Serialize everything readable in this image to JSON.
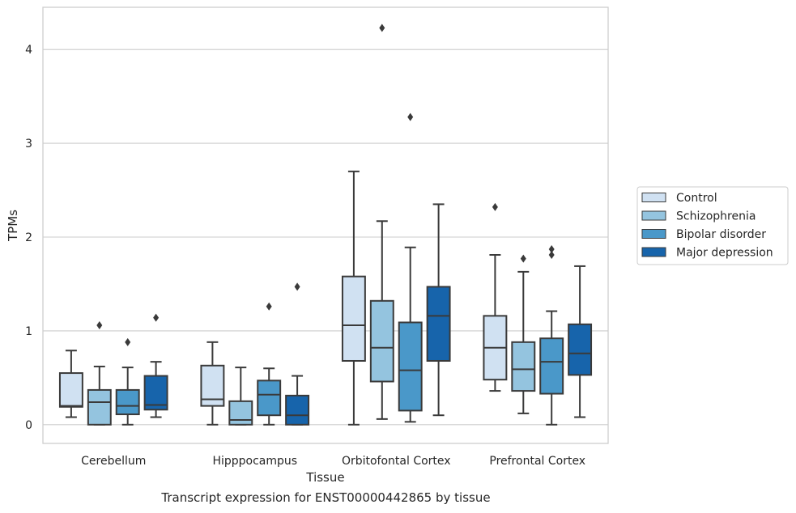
{
  "caption": "Transcript expression for ENST00000442865 by tissue",
  "chart_data": {
    "type": "box",
    "xlabel": "Tissue",
    "ylabel": "TPMs",
    "ylim": [
      -0.2,
      4.45
    ],
    "yticks": [
      0,
      1,
      2,
      3,
      4
    ],
    "grid": "horizontal",
    "legend_position": "right",
    "categories": [
      "Cerebellum",
      "Hipppocampus",
      "Orbitofontal Cortex",
      "Prefrontal Cortex"
    ],
    "series": [
      {
        "name": "Control",
        "color": "#d0e1f2",
        "boxes": [
          {
            "q1": 0.19,
            "median": 0.2,
            "q3": 0.55,
            "whisker_low": 0.08,
            "whisker_high": 0.79,
            "outliers": []
          },
          {
            "q1": 0.2,
            "median": 0.27,
            "q3": 0.63,
            "whisker_low": 0.0,
            "whisker_high": 0.88,
            "outliers": []
          },
          {
            "q1": 0.68,
            "median": 1.06,
            "q3": 1.58,
            "whisker_low": 0.0,
            "whisker_high": 2.7,
            "outliers": []
          },
          {
            "q1": 0.48,
            "median": 0.82,
            "q3": 1.16,
            "whisker_low": 0.36,
            "whisker_high": 1.81,
            "outliers": [
              2.32
            ]
          }
        ]
      },
      {
        "name": "Schizophrenia",
        "color": "#94c4df",
        "boxes": [
          {
            "q1": 0.0,
            "median": 0.24,
            "q3": 0.37,
            "whisker_low": 0.0,
            "whisker_high": 0.62,
            "outliers": [
              1.06
            ]
          },
          {
            "q1": 0.0,
            "median": 0.05,
            "q3": 0.25,
            "whisker_low": 0.0,
            "whisker_high": 0.61,
            "outliers": []
          },
          {
            "q1": 0.46,
            "median": 0.82,
            "q3": 1.32,
            "whisker_low": 0.06,
            "whisker_high": 2.17,
            "outliers": [
              4.23
            ]
          },
          {
            "q1": 0.36,
            "median": 0.59,
            "q3": 0.88,
            "whisker_low": 0.12,
            "whisker_high": 1.63,
            "outliers": [
              1.77
            ]
          }
        ]
      },
      {
        "name": "Bipolar disorder",
        "color": "#4a98c9",
        "boxes": [
          {
            "q1": 0.11,
            "median": 0.2,
            "q3": 0.37,
            "whisker_low": 0.0,
            "whisker_high": 0.61,
            "outliers": [
              0.88
            ]
          },
          {
            "q1": 0.1,
            "median": 0.32,
            "q3": 0.47,
            "whisker_low": 0.0,
            "whisker_high": 0.6,
            "outliers": [
              1.26
            ]
          },
          {
            "q1": 0.15,
            "median": 0.58,
            "q3": 1.09,
            "whisker_low": 0.03,
            "whisker_high": 1.89,
            "outliers": [
              3.28
            ]
          },
          {
            "q1": 0.33,
            "median": 0.67,
            "q3": 0.92,
            "whisker_low": 0.0,
            "whisker_high": 1.21,
            "outliers": [
              1.81,
              1.87
            ]
          }
        ]
      },
      {
        "name": "Major depression",
        "color": "#1764ab",
        "boxes": [
          {
            "q1": 0.16,
            "median": 0.21,
            "q3": 0.52,
            "whisker_low": 0.08,
            "whisker_high": 0.67,
            "outliers": [
              1.14
            ]
          },
          {
            "q1": 0.0,
            "median": 0.1,
            "q3": 0.31,
            "whisker_low": 0.0,
            "whisker_high": 0.52,
            "outliers": [
              1.47
            ]
          },
          {
            "q1": 0.68,
            "median": 1.16,
            "q3": 1.47,
            "whisker_low": 0.1,
            "whisker_high": 2.35,
            "outliers": []
          },
          {
            "q1": 0.53,
            "median": 0.76,
            "q3": 1.07,
            "whisker_low": 0.08,
            "whisker_high": 1.69,
            "outliers": []
          }
        ]
      }
    ]
  }
}
